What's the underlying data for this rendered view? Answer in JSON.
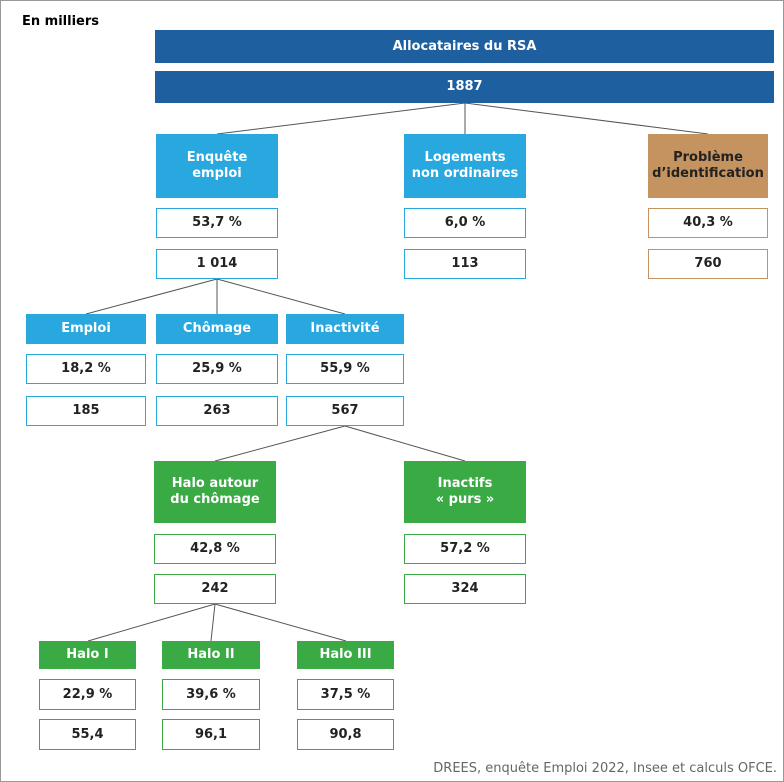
{
  "unit": "En milliers",
  "root": {
    "title": "Allocataires du RSA",
    "count": "1887"
  },
  "nodes": [
    {
      "label": [
        "Enquête",
        "emploi"
      ],
      "percent": "53,7 %",
      "count": "1 014"
    },
    {
      "label": [
        "Logements",
        "non ordinaires"
      ],
      "percent": "6,0 %",
      "count": "113"
    },
    {
      "label": [
        "Problème",
        "d’identification"
      ],
      "percent": "40,3 %",
      "count": "760"
    },
    {
      "label": [
        "Emploi"
      ],
      "percent": "18,2 %",
      "count": "185"
    },
    {
      "label": [
        "Chômage"
      ],
      "percent": "25,9 %",
      "count": "263"
    },
    {
      "label": [
        "Inactivité"
      ],
      "percent": "55,9 %",
      "count": "567"
    },
    {
      "label": [
        "Halo autour",
        "du chômage"
      ],
      "percent": "42,8 %",
      "count": "242"
    },
    {
      "label": [
        "Inactifs",
        "« purs »"
      ],
      "percent": "57,2 %",
      "count": "324"
    },
    {
      "label": [
        "Halo I"
      ],
      "percent": "22,9 %",
      "count": "55,4"
    },
    {
      "label": [
        "Halo II"
      ],
      "percent": "39,6 %",
      "count": "96,1"
    },
    {
      "label": [
        "Halo III"
      ],
      "percent": "37,5 %",
      "count": "90,8"
    }
  ],
  "source": "DREES, enquête Emploi 2022, Insee et calculs OFCE."
}
